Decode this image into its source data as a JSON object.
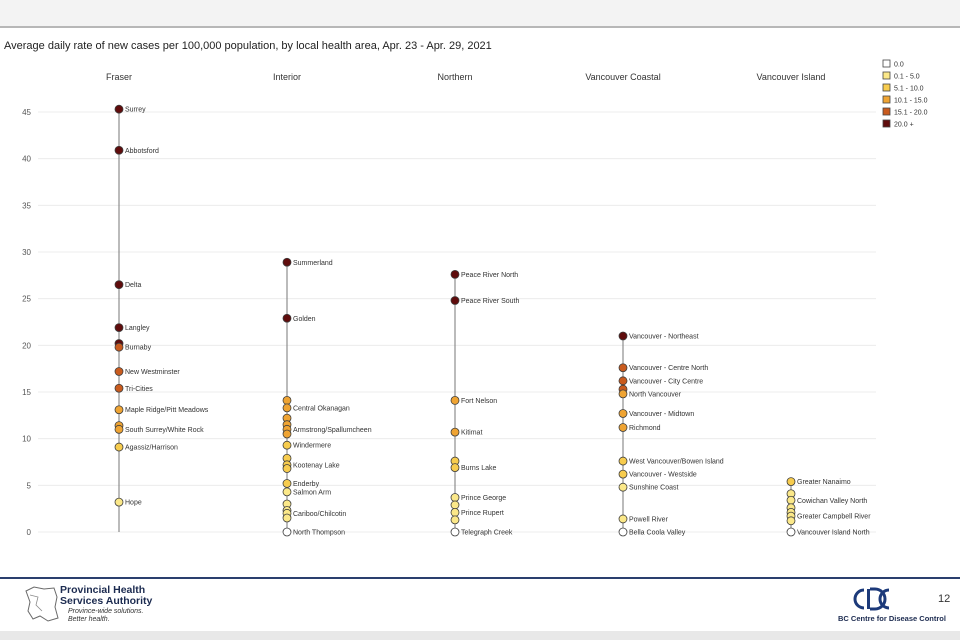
{
  "slide": {
    "page_number": "12",
    "footer_left": {
      "org_name": "Provincial Health Services Authority",
      "tagline": "Province-wide solutions. Better health."
    },
    "footer_right": {
      "org_name": "BC Centre for Disease Control"
    }
  },
  "colors": {
    "0.0": "#ffffff",
    "0.1 - 5.0": "#fbe889",
    "5.1 - 10.0": "#f7cc4e",
    "10.1 - 15.0": "#efa433",
    "15.1 - 20.0": "#c95b1e",
    "20.0 +": "#5f0c0c"
  },
  "chart_data": {
    "type": "scatter",
    "title": "Average daily rate of new cases per 100,000 population, by local health area, Apr. 23 - Apr. 29, 2021",
    "ylim": [
      0,
      45
    ],
    "yticks": [
      0,
      5,
      10,
      15,
      20,
      25,
      30,
      35,
      40,
      45
    ],
    "grid": true,
    "legend_position": "top-right",
    "legend": [
      "0.0",
      "0.1 - 5.0",
      "5.1 - 10.0",
      "10.1 - 15.0",
      "15.1 - 20.0",
      "20.0 +"
    ],
    "regions": [
      {
        "name": "Fraser",
        "points": [
          {
            "label": "Surrey",
            "value": 45.3
          },
          {
            "label": "Abbotsford",
            "value": 40.9
          },
          {
            "label": "Delta",
            "value": 26.5
          },
          {
            "label": "Langley",
            "value": 21.9
          },
          {
            "label": "",
            "value": 20.2
          },
          {
            "label": "Burnaby",
            "value": 19.8
          },
          {
            "label": "New Westminster",
            "value": 17.2
          },
          {
            "label": "Tri-Cities",
            "value": 15.4
          },
          {
            "label": "Maple Ridge/Pitt Meadows",
            "value": 13.1
          },
          {
            "label": "",
            "value": 11.4
          },
          {
            "label": "South Surrey/White Rock",
            "value": 11.0
          },
          {
            "label": "Agassiz/Harrison",
            "value": 9.1
          },
          {
            "label": "Hope",
            "value": 3.2
          }
        ]
      },
      {
        "name": "Interior",
        "points": [
          {
            "label": "Summerland",
            "value": 28.9
          },
          {
            "label": "Golden",
            "value": 22.9
          },
          {
            "label": "",
            "value": 14.1
          },
          {
            "label": "Central Okanagan",
            "value": 13.3
          },
          {
            "label": "",
            "value": 12.2
          },
          {
            "label": "",
            "value": 11.5
          },
          {
            "label": "Armstrong/Spallumcheen",
            "value": 11.0
          },
          {
            "label": "",
            "value": 10.5
          },
          {
            "label": "Windermere",
            "value": 9.3
          },
          {
            "label": "",
            "value": 7.9
          },
          {
            "label": "Kootenay Lake",
            "value": 7.2
          },
          {
            "label": "",
            "value": 6.8
          },
          {
            "label": "Enderby",
            "value": 5.2
          },
          {
            "label": "Salmon Arm",
            "value": 4.3
          },
          {
            "label": "",
            "value": 3.0
          },
          {
            "label": "",
            "value": 2.3
          },
          {
            "label": "Cariboo/Chilcotin",
            "value": 2.0
          },
          {
            "label": "",
            "value": 1.5
          },
          {
            "label": "North Thompson",
            "value": 0.0
          }
        ]
      },
      {
        "name": "Northern",
        "points": [
          {
            "label": "Peace River North",
            "value": 27.6
          },
          {
            "label": "Peace River South",
            "value": 24.8
          },
          {
            "label": "Fort Nelson",
            "value": 14.1
          },
          {
            "label": "Kitimat",
            "value": 10.7
          },
          {
            "label": "",
            "value": 7.6
          },
          {
            "label": "Burns Lake",
            "value": 6.9
          },
          {
            "label": "Prince George",
            "value": 3.7
          },
          {
            "label": "",
            "value": 2.9
          },
          {
            "label": "Prince Rupert",
            "value": 2.1
          },
          {
            "label": "",
            "value": 1.3
          },
          {
            "label": "Telegraph Creek",
            "value": 0.0
          }
        ]
      },
      {
        "name": "Vancouver Coastal",
        "points": [
          {
            "label": "Vancouver - Northeast",
            "value": 21.0
          },
          {
            "label": "Vancouver - Centre North",
            "value": 17.6
          },
          {
            "label": "Vancouver - City Centre",
            "value": 16.2
          },
          {
            "label": "",
            "value": 15.3
          },
          {
            "label": "North Vancouver",
            "value": 14.8
          },
          {
            "label": "Vancouver - Midtown",
            "value": 12.7
          },
          {
            "label": "Richmond",
            "value": 11.2
          },
          {
            "label": "West Vancouver/Bowen Island",
            "value": 7.6
          },
          {
            "label": "Vancouver - Westside",
            "value": 6.2
          },
          {
            "label": "Sunshine Coast",
            "value": 4.8
          },
          {
            "label": "Powell River",
            "value": 1.4
          },
          {
            "label": "Bella Coola Valley",
            "value": 0.0
          }
        ]
      },
      {
        "name": "Vancouver Island",
        "points": [
          {
            "label": "Greater Nanaimo",
            "value": 5.4
          },
          {
            "label": "",
            "value": 4.1
          },
          {
            "label": "Cowichan Valley North",
            "value": 3.4
          },
          {
            "label": "",
            "value": 2.6
          },
          {
            "label": "",
            "value": 2.1
          },
          {
            "label": "Greater Campbell River",
            "value": 1.7
          },
          {
            "label": "",
            "value": 1.2
          },
          {
            "label": "Vancouver Island North",
            "value": 0.0
          }
        ]
      }
    ]
  }
}
